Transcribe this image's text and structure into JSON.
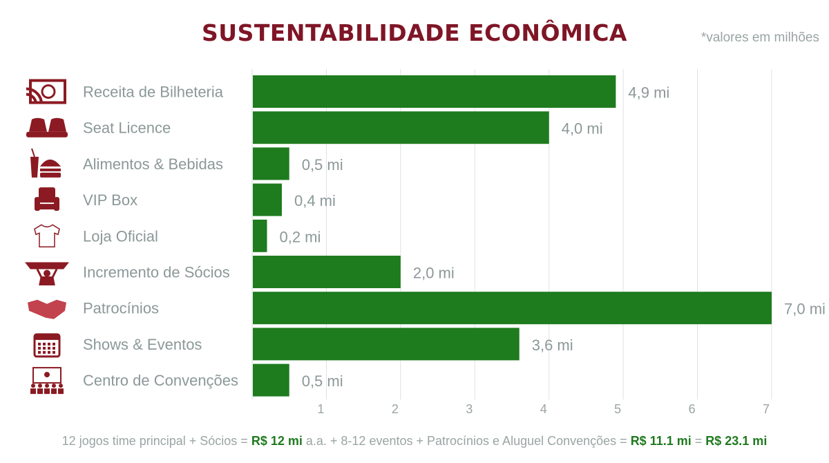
{
  "title": "SUSTENTABILIDADE ECONÔMICA",
  "note": "*valores em milhões",
  "chart_data": {
    "type": "bar",
    "orientation": "horizontal",
    "categories": [
      "Receita de Bilheteria",
      "Seat Licence",
      "Alimentos & Bebidas",
      "VIP Box",
      "Loja Oficial",
      "Incremento de Sócios",
      "Patrocínios",
      "Shows & Eventos",
      "Centro de Convenções"
    ],
    "values": [
      4.9,
      4.0,
      0.5,
      0.4,
      0.2,
      2.0,
      7.0,
      3.6,
      0.5
    ],
    "data_labels": [
      "4,9 mi",
      "4,0 mi",
      "0,5 mi",
      "0,4 mi",
      "0,2 mi",
      "2,0 mi",
      "7,0 mi",
      "3,6 mi",
      "0,5 mi"
    ],
    "icons": [
      "ticket-icon",
      "seats-icon",
      "food-drink-icon",
      "armchair-icon",
      "shirt-icon",
      "fan-scarf-icon",
      "handshake-icon",
      "calendar-icon",
      "conference-icon"
    ],
    "xlim": [
      0,
      7
    ],
    "ticks": [
      "1",
      "2",
      "3",
      "4",
      "5",
      "6",
      "7"
    ],
    "grid": true,
    "bar_color": "#1e7b1e",
    "icon_color": "#8b1a22"
  },
  "footer": {
    "part1": "12 jogos time principal + Sócios = ",
    "amount1": "R$ 12 mi",
    "part2": " a.a. +  8-12 eventos + Patrocínios e Aluguel Convenções = ",
    "amount2": "R$ 11.1 mi",
    "part3": " = ",
    "total": "R$ 23.1 mi"
  }
}
